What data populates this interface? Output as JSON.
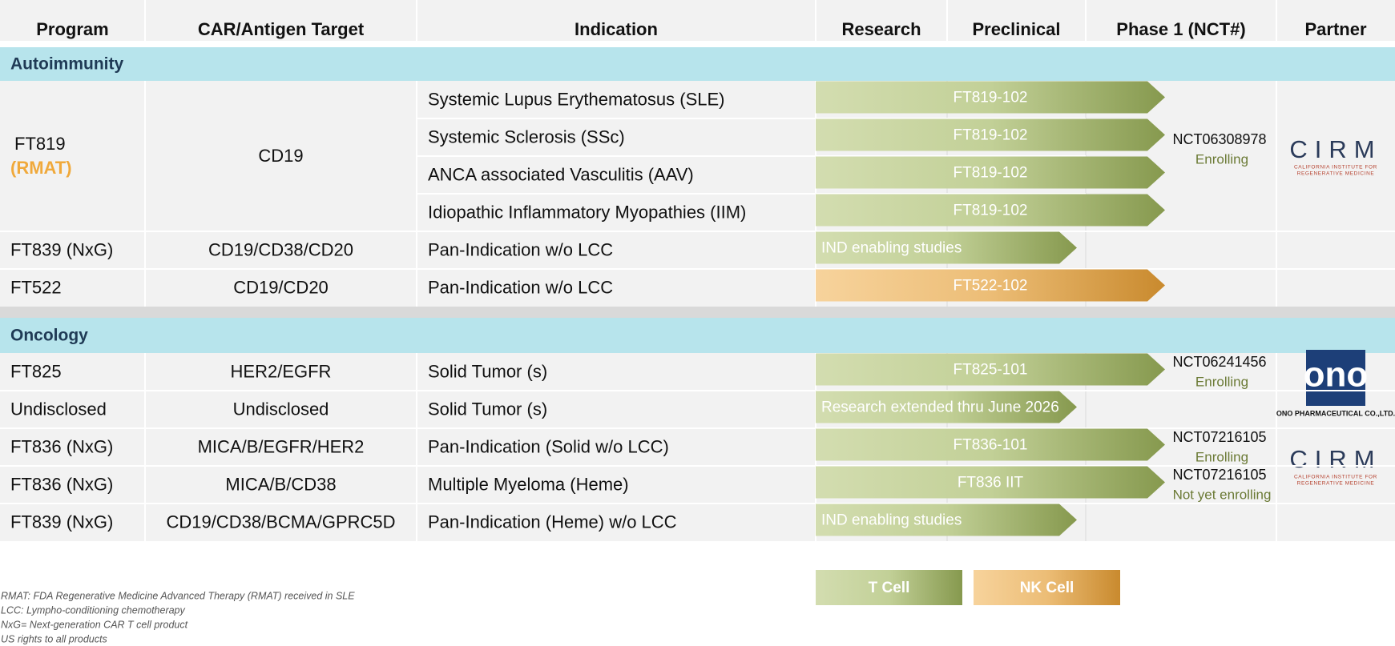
{
  "header": {
    "columns": [
      "Program",
      "CAR/Antigen Target",
      "Indication",
      "Research",
      "Preclinical",
      "Phase 1 (NCT#)",
      "Partner"
    ]
  },
  "sections": [
    {
      "title": "Autoimmunity",
      "groups": [
        {
          "program": "FT819",
          "designation": "(RMAT)",
          "target": "CD19",
          "cell": "T Cell",
          "reach": "Phase 1 (NCT#)",
          "trials": [
            {
              "indication": "Systemic Lupus Erythematosus (SLE)",
              "bar": "FT819-102"
            },
            {
              "indication": "Systemic Sclerosis (SSc)",
              "bar": "FT819-102"
            },
            {
              "indication": "ANCA associated Vasculitis  (AAV)",
              "bar": "FT819-102"
            },
            {
              "indication": "Idiopathic Inflammatory Myopathies (IIM)",
              "bar": "FT819-102"
            }
          ],
          "nct": "NCT06308978",
          "status": "Enrolling",
          "partner": {
            "style": "wordmark",
            "name": "CIRM",
            "subtitle": [
              "CALIFORNIA INSTITUTE FOR",
              "REGENERATIVE MEDICINE"
            ]
          }
        },
        {
          "program": "FT839 (NxG)",
          "target": "CD19/CD38/CD20",
          "cell": "T Cell",
          "reach": "Preclinical",
          "trials": [
            {
              "indication": "Pan-Indication w/o LCC",
              "bar": "IND enabling studies"
            }
          ]
        },
        {
          "program": "FT522",
          "target": "CD19/CD20",
          "cell": "NK Cell",
          "reach": "Phase 1 (NCT#)",
          "trials": [
            {
              "indication": "Pan-Indication w/o LCC",
              "bar": "FT522-102"
            }
          ]
        }
      ]
    },
    {
      "title": "Oncology",
      "groups": [
        {
          "program": "FT825",
          "target": "HER2/EGFR",
          "cell": "T Cell",
          "reach": "Phase 1 (NCT#)",
          "trials": [
            {
              "indication": "Solid Tumor (s)",
              "bar": "FT825-101"
            }
          ],
          "nct": "NCT06241456",
          "status": "Enrolling",
          "partner": {
            "style": "badge",
            "name": "ono",
            "subtitle": [
              "ONO PHARMACEUTICAL CO.,LTD."
            ]
          }
        },
        {
          "program": "Undisclosed",
          "target": "Undisclosed",
          "cell": "T Cell",
          "reach": "Preclinical",
          "trials": [
            {
              "indication": "Solid Tumor (s)",
              "bar": "Research extended thru June 2026"
            }
          ]
        },
        {
          "program": "FT836 (NxG)",
          "target": "MICA/B/EGFR/HER2",
          "cell": "T Cell",
          "reach": "Phase 1 (NCT#)",
          "trials": [
            {
              "indication": "Pan-Indication (Solid w/o LCC)",
              "bar": "FT836-101"
            }
          ],
          "nct": "NCT07216105",
          "status": "Enrolling",
          "partner": {
            "style": "wordmark",
            "name": "CIRM",
            "subtitle": [
              "CALIFORNIA INSTITUTE FOR",
              "REGENERATIVE MEDICINE"
            ]
          }
        },
        {
          "program": "FT836 (NxG)",
          "target": "MICA/B/CD38",
          "cell": "T Cell",
          "reach": "Phase 1 (NCT#)",
          "trials": [
            {
              "indication": "Multiple Myeloma (Heme)",
              "bar": "FT836 IIT"
            }
          ],
          "nct": "NCT07216105",
          "status": "Not yet enrolling"
        },
        {
          "program": "FT839 (NxG)",
          "target": "CD19/CD38/BCMA/GPRC5D",
          "cell": "T Cell",
          "reach": "Preclinical",
          "trials": [
            {
              "indication": "Pan-Indication (Heme) w/o LCC",
              "bar": "IND enabling studies"
            }
          ]
        }
      ]
    }
  ],
  "legend": [
    {
      "name": "T Cell",
      "colors": [
        "#d3ddb0",
        "#c2d097",
        "#86994e"
      ]
    },
    {
      "name": "NK Cell",
      "colors": [
        "#f7d39c",
        "#ecbd76",
        "#c98a2e"
      ]
    }
  ],
  "footnotes": [
    "RMAT: FDA Regenerative Medicine Advanced Therapy (RMAT) received in SLE",
    "LCC: Lympho-conditioning chemotherapy",
    "NxG= Next-generation CAR T cell product",
    "US rights to all products"
  ]
}
